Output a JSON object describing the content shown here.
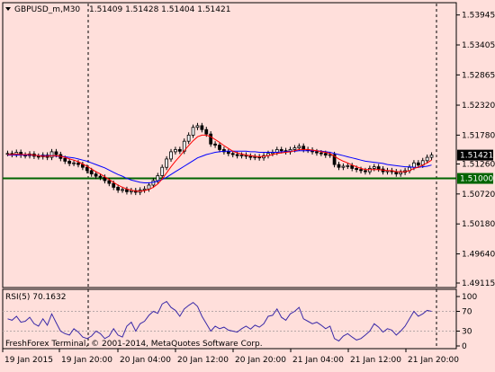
{
  "title": {
    "symbol_tf": "GBPUSD_m,M30",
    "ohlc": "1.51409 1.51428 1.51404 1.51421"
  },
  "price_axis": {
    "ticks": [
      "1.53945",
      "1.53405",
      "1.52865",
      "1.52320",
      "1.51780",
      "1.51260",
      "1.50720",
      "1.50180",
      "1.49640",
      "1.49115"
    ],
    "tick_values": [
      1.53945,
      1.53405,
      1.52865,
      1.5232,
      1.5178,
      1.5126,
      1.5072,
      1.5018,
      1.4964,
      1.49115
    ]
  },
  "current_price_label": "1.51421",
  "level_label": "1.51000",
  "rsi": {
    "label": "RSI(5) 70.1632",
    "ticks": [
      "100",
      "70",
      "30",
      "0"
    ],
    "tick_values": [
      100,
      70,
      30,
      0
    ]
  },
  "watermark": "FreshForex Terminal, © 2001-2014, MetaQuotes Software Corp.",
  "time_axis": {
    "ticks": [
      "19 Jan 2015",
      "19 Jan 20:00",
      "20 Jan 04:00",
      "20 Jan 12:00",
      "20 Jan 20:00",
      "21 Jan 04:00",
      "21 Jan 12:00",
      "21 Jan 20:00"
    ]
  },
  "colors": {
    "background": "#ffdfdb",
    "candle": "#000000",
    "ma_fast": "#ff0000",
    "ma_slow": "#0000ff",
    "level_line": "#006400",
    "rsi_line": "#3a2aa8",
    "level_label_bg": "#006400",
    "current_label_bg": "#000000"
  },
  "chart_data": {
    "type": "candlestick",
    "symbol": "GBPUSD_m",
    "timeframe": "M30",
    "ylim": [
      1.4905,
      1.5415
    ],
    "horizontal_level": 1.51,
    "close": [
      1.5145,
      1.5143,
      1.5147,
      1.5142,
      1.5141,
      1.5144,
      1.514,
      1.5139,
      1.5142,
      1.5138,
      1.5148,
      1.5143,
      1.5136,
      1.5131,
      1.5127,
      1.5128,
      1.5125,
      1.512,
      1.5114,
      1.5108,
      1.5104,
      1.5102,
      1.5096,
      1.5091,
      1.5084,
      1.5079,
      1.508,
      1.5076,
      1.5078,
      1.5075,
      1.5079,
      1.5081,
      1.5088,
      1.5096,
      1.5105,
      1.512,
      1.5135,
      1.5148,
      1.5152,
      1.5149,
      1.5167,
      1.5178,
      1.5192,
      1.5195,
      1.5188,
      1.518,
      1.5162,
      1.516,
      1.5152,
      1.5148,
      1.5145,
      1.5143,
      1.5141,
      1.5142,
      1.514,
      1.5138,
      1.5139,
      1.5137,
      1.5141,
      1.5145,
      1.5147,
      1.5152,
      1.515,
      1.5148,
      1.5152,
      1.5155,
      1.5158,
      1.5152,
      1.5151,
      1.5148,
      1.5146,
      1.5145,
      1.5142,
      1.5143,
      1.5125,
      1.512,
      1.5122,
      1.5123,
      1.5118,
      1.5116,
      1.5114,
      1.5112,
      1.5118,
      1.5121,
      1.5117,
      1.5112,
      1.5114,
      1.5112,
      1.5108,
      1.5111,
      1.5114,
      1.512,
      1.5128,
      1.5124,
      1.5132,
      1.5138,
      1.5142
    ],
    "ma_fast": [
      1.5143,
      1.5143,
      1.5144,
      1.5143,
      1.5143,
      1.5143,
      1.5142,
      1.5141,
      1.514,
      1.514,
      1.5141,
      1.5141,
      1.514,
      1.5138,
      1.5135,
      1.5133,
      1.513,
      1.5126,
      1.5122,
      1.5117,
      1.5112,
      1.5108,
      1.5103,
      1.5098,
      1.5093,
      1.5088,
      1.5084,
      1.5081,
      1.5079,
      1.5077,
      1.5077,
      1.5078,
      1.508,
      1.5084,
      1.509,
      1.5099,
      1.511,
      1.5121,
      1.5131,
      1.514,
      1.515,
      1.5159,
      1.5168,
      1.5175,
      1.5178,
      1.5178,
      1.5175,
      1.517,
      1.5165,
      1.5159,
      1.5154,
      1.5149,
      1.5146,
      1.5144,
      1.5142,
      1.5141,
      1.514,
      1.5139,
      1.514,
      1.5141,
      1.5143,
      1.5145,
      1.5146,
      1.5147,
      1.5148,
      1.515,
      1.5152,
      1.5152,
      1.5152,
      1.5151,
      1.515,
      1.5148,
      1.5147,
      1.5145,
      1.514,
      1.5135,
      1.5131,
      1.5128,
      1.5124,
      1.5121,
      1.5118,
      1.5116,
      1.5116,
      1.5116,
      1.5116,
      1.5115,
      1.5114,
      1.5114,
      1.5112,
      1.5112,
      1.5112,
      1.5114,
      1.5118,
      1.512,
      1.5124,
      1.5128,
      1.5133
    ],
    "ma_slow": [
      1.5142,
      1.5142,
      1.5142,
      1.5142,
      1.5142,
      1.5142,
      1.5142,
      1.5141,
      1.5141,
      1.5141,
      1.5141,
      1.514,
      1.514,
      1.5139,
      1.5138,
      1.5137,
      1.5135,
      1.5133,
      1.5131,
      1.5128,
      1.5125,
      1.5122,
      1.5119,
      1.5115,
      1.5111,
      1.5107,
      1.5104,
      1.51,
      1.5097,
      1.5095,
      1.5093,
      1.5092,
      1.5092,
      1.5093,
      1.5095,
      1.5098,
      1.5102,
      1.5107,
      1.5112,
      1.5117,
      1.5122,
      1.5127,
      1.5132,
      1.5137,
      1.514,
      1.5143,
      1.5145,
      1.5147,
      1.5148,
      1.5149,
      1.5149,
      1.5149,
      1.5149,
      1.5149,
      1.5149,
      1.5148,
      1.5148,
      1.5147,
      1.5147,
      1.5147,
      1.5147,
      1.5147,
      1.5148,
      1.5148,
      1.5149,
      1.5149,
      1.515,
      1.515,
      1.515,
      1.515,
      1.515,
      1.5149,
      1.5148,
      1.5147,
      1.5145,
      1.5143,
      1.5141,
      1.5139,
      1.5137,
      1.5135,
      1.5133,
      1.5131,
      1.513,
      1.5129,
      1.5128,
      1.5127,
      1.5125,
      1.5124,
      1.5123,
      1.5122,
      1.5121,
      1.5121,
      1.512,
      1.512,
      1.5121,
      1.5122,
      1.5124
    ],
    "rsi_values": [
      55,
      52,
      60,
      48,
      50,
      58,
      45,
      40,
      55,
      42,
      65,
      47,
      30,
      25,
      22,
      35,
      28,
      18,
      15,
      20,
      30,
      25,
      15,
      20,
      35,
      22,
      18,
      40,
      48,
      30,
      45,
      50,
      62,
      70,
      66,
      85,
      90,
      78,
      72,
      60,
      75,
      82,
      88,
      80,
      60,
      45,
      30,
      40,
      35,
      38,
      32,
      30,
      28,
      35,
      40,
      34,
      42,
      38,
      45,
      60,
      62,
      75,
      58,
      52,
      65,
      70,
      78,
      55,
      50,
      45,
      48,
      42,
      35,
      40,
      15,
      10,
      20,
      25,
      18,
      12,
      15,
      22,
      30,
      45,
      38,
      28,
      35,
      32,
      22,
      30,
      40,
      55,
      70,
      60,
      65,
      72,
      70
    ],
    "price_ticks": [
      1.53945,
      1.53405,
      1.52865,
      1.5232,
      1.5178,
      1.5126,
      1.5072,
      1.5018,
      1.4964,
      1.49115
    ],
    "time_labels": [
      "19 Jan 2015",
      "19 Jan 20:00",
      "20 Jan 04:00",
      "20 Jan 12:00",
      "20 Jan 20:00",
      "21 Jan 04:00",
      "21 Jan 12:00",
      "21 Jan 20:00"
    ]
  }
}
